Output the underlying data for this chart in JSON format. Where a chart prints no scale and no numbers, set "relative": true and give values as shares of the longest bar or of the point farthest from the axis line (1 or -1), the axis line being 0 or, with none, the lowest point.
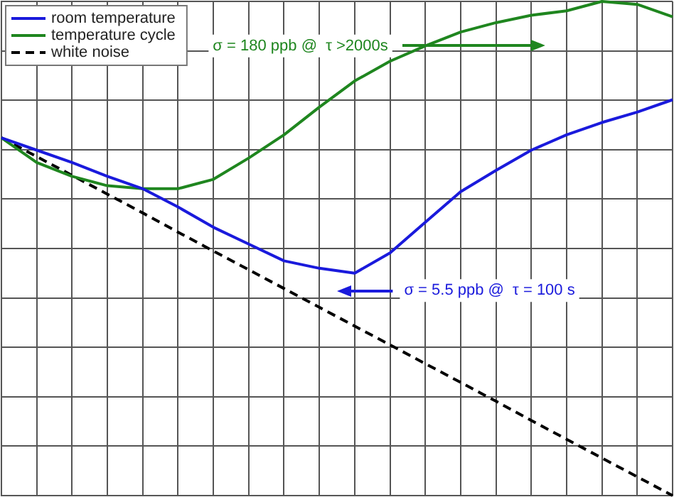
{
  "chart_data": {
    "type": "line",
    "relative": true,
    "grid": true,
    "legend": "top left",
    "categories": [
      null,
      null,
      null,
      null,
      null,
      null,
      null,
      null,
      null,
      null,
      null,
      null,
      null,
      null,
      null,
      null,
      null,
      null,
      null,
      null
    ],
    "series": [
      {
        "name": "room temperature",
        "color": "#1a1adc",
        "values": [
          0.724,
          0.699,
          0.674,
          0.646,
          0.621,
          0.584,
          0.543,
          0.509,
          0.475,
          0.46,
          0.45,
          0.491,
          0.553,
          0.615,
          0.658,
          0.699,
          0.73,
          0.755,
          0.776,
          0.801
        ]
      },
      {
        "name": "temperature cycle",
        "color": "#1f861f",
        "values": [
          0.724,
          0.674,
          0.646,
          0.627,
          0.621,
          0.621,
          0.64,
          0.683,
          0.73,
          0.786,
          0.839,
          0.879,
          0.91,
          0.938,
          0.957,
          0.972,
          0.981,
          1,
          0.994,
          0.969
        ]
      },
      {
        "name": "white noise",
        "color": "#000000",
        "line_style": "dashed",
        "values": [
          0.724,
          0.686,
          0.648,
          0.61,
          0.572,
          0.533,
          0.495,
          0.457,
          0.419,
          0.381,
          0.343,
          0.305,
          0.267,
          0.229,
          0.191,
          0.152,
          0.114,
          0.076,
          0.038,
          0
        ]
      }
    ],
    "annotations": [
      "σ = 180 ppb @  τ >2000s",
      "σ = 5.5 ppb @  τ = 100 s"
    ]
  }
}
